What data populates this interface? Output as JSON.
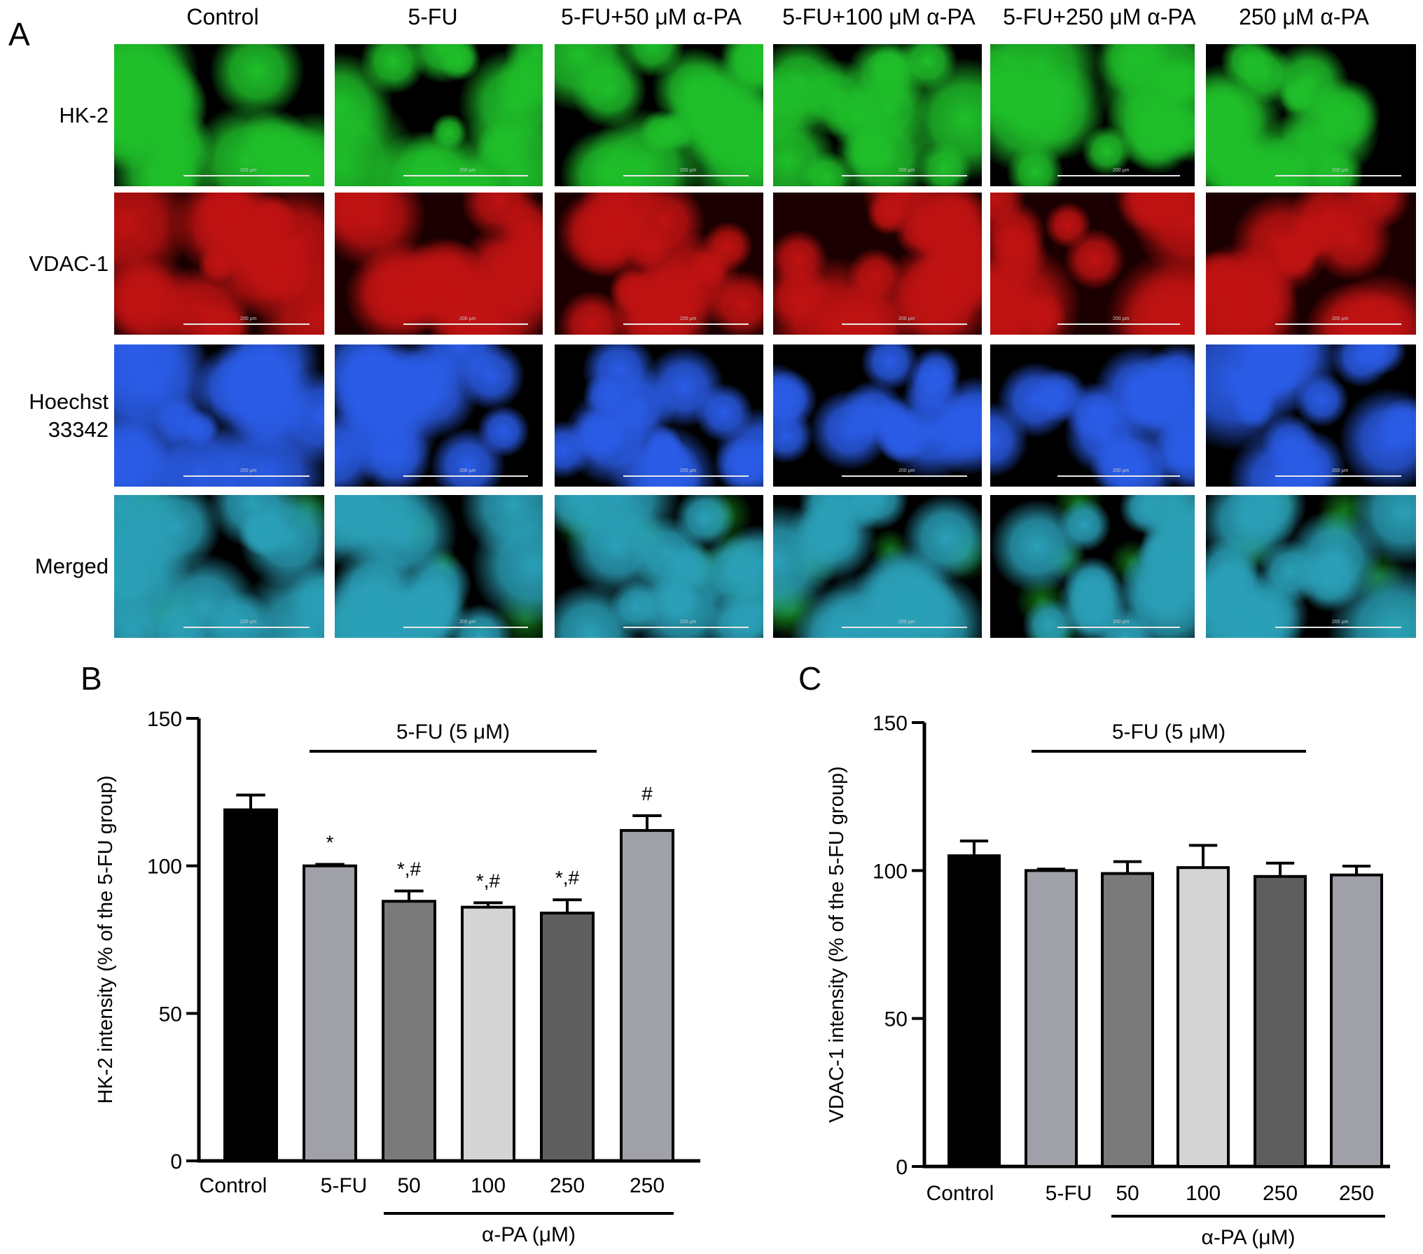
{
  "panel_labels": {
    "a": "A",
    "b": "B",
    "c": "C"
  },
  "micrograph_panel": {
    "columns": [
      "Control",
      "5-FU",
      "5-FU+50 μM α-PA",
      "5-FU+100 μM α-PA",
      "5-FU+250 μM α-PA",
      "250 μM α-PA"
    ],
    "rows": [
      {
        "label": "HK-2",
        "color": "#1fc02a"
      },
      {
        "label": "VDAC-1",
        "color": "#c01212"
      },
      {
        "label": "Hoechst\n33342",
        "color": "#2a5ce8"
      },
      {
        "label": "Merged",
        "color": "#2aa0b8"
      }
    ],
    "scale_bar_text": "200 μm"
  },
  "chart_data": [
    {
      "type": "bar",
      "panel": "B",
      "ylabel": "HK-2 intensity (% of the 5-FU group)",
      "ylim": [
        0,
        150
      ],
      "yticks": [
        0,
        50,
        100,
        150
      ],
      "categories": [
        "Control",
        "5-FU",
        "50",
        "100",
        "250",
        "250"
      ],
      "values": [
        119,
        100,
        88,
        86,
        84,
        112
      ],
      "errors": [
        5,
        0.5,
        3.5,
        1.5,
        4.5,
        5
      ],
      "bar_colors": [
        "#000000",
        "#a0a0a8",
        "#7a7a7a",
        "#d4d4d4",
        "#5e5e5e",
        "#a0a0a8"
      ],
      "annotations": [
        "",
        "*",
        "*,#",
        "*,#",
        "*,#",
        "#"
      ],
      "bracket_top_label": "5-FU (5 μM)",
      "bracket_bottom_label": "α-PA (μM)"
    },
    {
      "type": "bar",
      "panel": "C",
      "ylabel": "VDAC-1 intensity (% of the 5-FU group)",
      "ylim": [
        0,
        150
      ],
      "yticks": [
        0,
        50,
        100,
        150
      ],
      "categories": [
        "Control",
        "5-FU",
        "50",
        "100",
        "250",
        "250"
      ],
      "values": [
        105,
        100,
        99,
        101,
        98,
        98.5
      ],
      "errors": [
        5,
        0.5,
        4,
        7.5,
        4.5,
        3
      ],
      "bar_colors": [
        "#000000",
        "#a0a0a8",
        "#7a7a7a",
        "#d4d4d4",
        "#5e5e5e",
        "#a0a0a8"
      ],
      "annotations": [
        "",
        "",
        "",
        "",
        "",
        ""
      ],
      "bracket_top_label": "5-FU (5 μM)",
      "bracket_bottom_label": "α-PA (μM)"
    }
  ]
}
